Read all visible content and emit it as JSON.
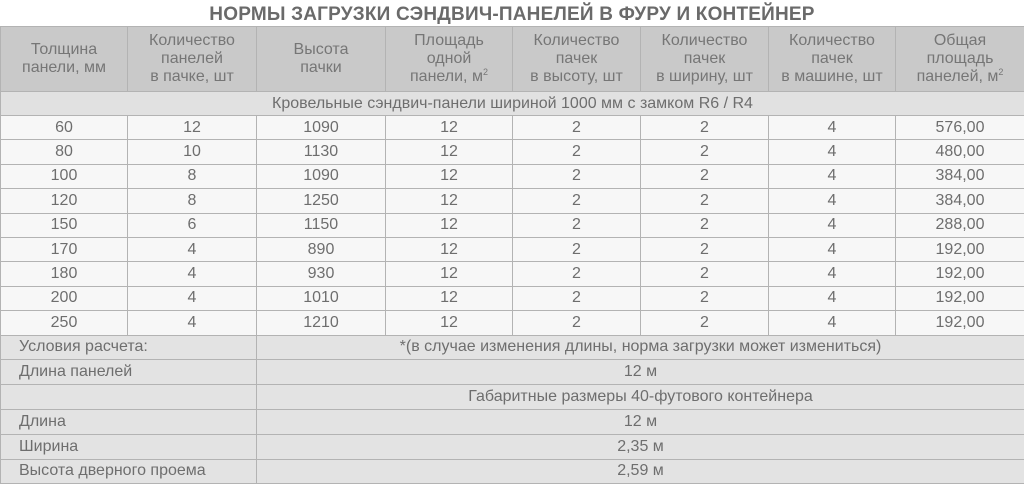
{
  "title": "НОРМЫ ЗАГРУЗКИ СЭНДВИЧ-ПАНЕЛЕЙ В ФУРУ И КОНТЕЙНЕР",
  "headers": [
    [
      "Толщина",
      "панели, мм"
    ],
    [
      "Количество",
      "панелей",
      "в пачке, шт"
    ],
    [
      "Высота",
      "пачки"
    ],
    [
      "Площадь",
      "одной",
      "панели, м",
      "2"
    ],
    [
      "Количество",
      "пачек",
      "в высоту, шт"
    ],
    [
      "Количество",
      "пачек",
      "в ширину, шт"
    ],
    [
      "Количество",
      "пачек",
      "в машине, шт"
    ],
    [
      "Общая",
      "площадь",
      "панелей, м",
      "2"
    ]
  ],
  "section_title": "Кровельные сэндвич-панели шириной 1000 мм с замком R6 / R4",
  "rows": [
    [
      "60",
      "12",
      "1090",
      "12",
      "2",
      "2",
      "4",
      "576,00"
    ],
    [
      "80",
      "10",
      "1130",
      "12",
      "2",
      "2",
      "4",
      "480,00"
    ],
    [
      "100",
      "8",
      "1090",
      "12",
      "2",
      "2",
      "4",
      "384,00"
    ],
    [
      "120",
      "8",
      "1250",
      "12",
      "2",
      "2",
      "4",
      "384,00"
    ],
    [
      "150",
      "6",
      "1150",
      "12",
      "2",
      "2",
      "4",
      "288,00"
    ],
    [
      "170",
      "4",
      "890",
      "12",
      "2",
      "2",
      "4",
      "192,00"
    ],
    [
      "180",
      "4",
      "930",
      "12",
      "2",
      "2",
      "4",
      "192,00"
    ],
    [
      "200",
      "4",
      "1010",
      "12",
      "2",
      "2",
      "4",
      "192,00"
    ],
    [
      "250",
      "4",
      "1210",
      "12",
      "2",
      "2",
      "4",
      "192,00"
    ]
  ],
  "footer": [
    {
      "label": "Условия расчета:",
      "value": "*(в случае изменения длины, норма загрузки может измениться)"
    },
    {
      "label": "Длина панелей",
      "value": "12 м"
    },
    {
      "label": "",
      "value": "Габаритные размеры 40-футового контейнера"
    },
    {
      "label": "Длина",
      "value": "12 м"
    },
    {
      "label": "Ширина",
      "value": "2,35 м"
    },
    {
      "label": "Высота дверного проема",
      "value": "2,59 м"
    }
  ]
}
